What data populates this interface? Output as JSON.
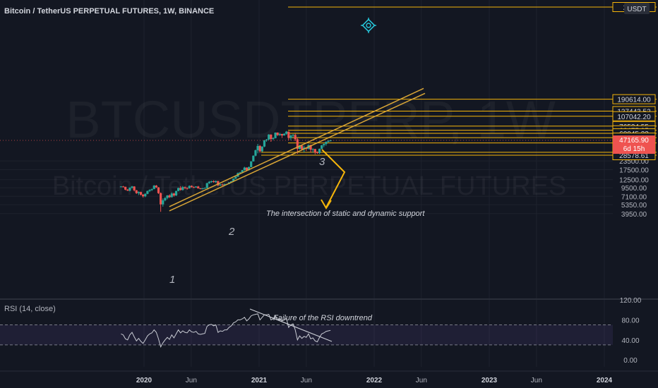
{
  "header": {
    "symbol": "Bitcoin / TetherUS PERPETUAL FUTURES, 1W, BINANCE",
    "currency": "USDT"
  },
  "watermark": {
    "line1": "BTCUSDTPERP, 1W",
    "line2": "Bitcoin / TetherUS PERPETUAL FUTURES"
  },
  "price_axis": {
    "ticks": [
      "23500.00",
      "17500.00",
      "12500.00",
      "9500.00",
      "7100.00",
      "5350.00",
      "3950.00"
    ]
  },
  "levels": [
    {
      "label": "253...6"
    },
    {
      "label": "190614.00"
    },
    {
      "label": "127443.52"
    },
    {
      "label": "107042.20"
    },
    {
      "label": "76534.55"
    },
    {
      "label": "66475.95"
    },
    {
      "label": "60045.33"
    },
    {
      "label": "51861.89"
    },
    {
      "label": "43268.49"
    },
    {
      "label": "31500.00"
    },
    {
      "label": "28578.61"
    }
  ],
  "current_price": {
    "label": "47165.90",
    "countdown": "6d 15h"
  },
  "time_axis": {
    "ticks": [
      "2020",
      "Jun",
      "2021",
      "Jun",
      "2022",
      "Jun",
      "2023",
      "Jun",
      "2024"
    ]
  },
  "annotations": {
    "touch_1": "1",
    "touch_2": "2",
    "touch_3": "3",
    "support_note": "The intersection of static and dynamic support",
    "rsi_note": "Failure of the RSI downtrend"
  },
  "rsi": {
    "title": "RSI (14, close)",
    "ticks": [
      "120.00",
      "80.00",
      "40.00",
      "0.00"
    ]
  },
  "colors": {
    "background": "#131722",
    "level_line": "#f5b50a",
    "trendline": "#d8a536",
    "bull": "#26a69a",
    "bear": "#ef5350",
    "rsi_line": "#c9ccd4",
    "rsi_band": "#7e57c2",
    "text": "#b2b5be"
  },
  "chart_data": {
    "type": "candlestick",
    "ohlc": [
      [
        9.9,
        10.0,
        9.7,
        9.9
      ],
      [
        9.9,
        10.1,
        9.6,
        9.8
      ],
      [
        9.8,
        9.8,
        8.7,
        8.9
      ],
      [
        8.9,
        9.1,
        8.5,
        8.6
      ],
      [
        8.6,
        9.6,
        8.4,
        9.5
      ],
      [
        9.5,
        10.1,
        9.2,
        9.9
      ],
      [
        9.9,
        10.0,
        8.4,
        8.7
      ],
      [
        8.7,
        8.8,
        7.7,
        7.9
      ],
      [
        7.9,
        8.4,
        7.4,
        8.2
      ],
      [
        8.2,
        8.3,
        7.3,
        7.5
      ],
      [
        7.5,
        7.7,
        6.8,
        7.1
      ],
      [
        7.1,
        7.9,
        6.9,
        7.7
      ],
      [
        7.7,
        8.6,
        7.6,
        8.5
      ],
      [
        8.5,
        9.0,
        8.2,
        8.8
      ],
      [
        8.8,
        9.2,
        8.5,
        9.1
      ],
      [
        9.1,
        10.4,
        9.0,
        10.2
      ],
      [
        10.2,
        10.4,
        9.4,
        9.6
      ],
      [
        9.6,
        9.7,
        7.7,
        7.9
      ],
      [
        7.9,
        8.1,
        4.2,
        5.4
      ],
      [
        5.4,
        6.6,
        5.0,
        6.2
      ],
      [
        6.2,
        6.9,
        6.0,
        6.7
      ],
      [
        6.7,
        7.4,
        6.4,
        7.3
      ],
      [
        7.3,
        7.6,
        6.7,
        6.9
      ],
      [
        6.9,
        8.1,
        6.8,
        7.8
      ],
      [
        7.8,
        8.0,
        7.0,
        7.3
      ],
      [
        7.3,
        8.6,
        7.2,
        8.5
      ],
      [
        8.5,
        9.5,
        8.4,
        9.4
      ],
      [
        9.4,
        10.0,
        8.6,
        8.8
      ],
      [
        8.8,
        10.1,
        8.6,
        9.7
      ],
      [
        9.7,
        9.9,
        9.1,
        9.4
      ],
      [
        9.4,
        9.6,
        8.9,
        9.3
      ],
      [
        9.3,
        10.3,
        9.2,
        10.1
      ],
      [
        10.1,
        10.3,
        9.5,
        9.7
      ],
      [
        9.7,
        9.9,
        9.4,
        9.6
      ],
      [
        9.6,
        10.0,
        9.5,
        9.9
      ],
      [
        9.9,
        10.1,
        9.2,
        9.3
      ],
      [
        9.3,
        9.4,
        9.0,
        9.2
      ],
      [
        9.2,
        9.4,
        9.0,
        9.3
      ],
      [
        9.3,
        9.6,
        9.2,
        9.4
      ],
      [
        9.4,
        11.2,
        9.3,
        11.1
      ],
      [
        11.1,
        11.9,
        10.8,
        11.6
      ],
      [
        11.6,
        12.0,
        11.2,
        11.8
      ],
      [
        11.8,
        12.2,
        11.3,
        11.5
      ],
      [
        11.5,
        12.1,
        11.2,
        11.9
      ],
      [
        11.9,
        12.0,
        10.0,
        10.3
      ],
      [
        10.3,
        10.8,
        10.1,
        10.6
      ],
      [
        10.6,
        10.9,
        10.2,
        10.4
      ],
      [
        10.4,
        10.9,
        10.2,
        10.7
      ],
      [
        10.7,
        10.9,
        10.5,
        10.8
      ],
      [
        10.8,
        11.5,
        10.7,
        11.4
      ],
      [
        11.4,
        11.9,
        11.3,
        11.8
      ],
      [
        11.8,
        13.0,
        11.7,
        12.9
      ],
      [
        12.9,
        13.9,
        12.8,
        13.8
      ],
      [
        13.8,
        15.9,
        13.7,
        15.6
      ],
      [
        15.6,
        16.2,
        15.2,
        16.0
      ],
      [
        16.0,
        17.3,
        15.8,
        17.2
      ],
      [
        17.2,
        19.3,
        16.9,
        18.8
      ],
      [
        18.8,
        18.9,
        16.5,
        17.2
      ],
      [
        17.2,
        19.5,
        17.0,
        19.1
      ],
      [
        19.1,
        23.3,
        19.0,
        23.2
      ],
      [
        23.2,
        28.4,
        23.0,
        28.1
      ],
      [
        28.1,
        34.5,
        27.5,
        33.8
      ],
      [
        33.8,
        41.9,
        30.5,
        39.1
      ],
      [
        39.1,
        40.3,
        31.0,
        32.6
      ],
      [
        32.6,
        38.6,
        31.8,
        38.3
      ],
      [
        38.3,
        48.0,
        37.5,
        47.2
      ],
      [
        47.2,
        49.5,
        45.0,
        48.6
      ],
      [
        48.6,
        58.3,
        47.5,
        57.5
      ],
      [
        57.5,
        57.8,
        45.0,
        49.5
      ],
      [
        49.5,
        52.5,
        47.5,
        51.0
      ],
      [
        51.0,
        61.8,
        50.5,
        61.5
      ],
      [
        61.5,
        61.8,
        54.8,
        56.5
      ],
      [
        56.5,
        61.0,
        55.0,
        58.7
      ],
      [
        58.7,
        59.0,
        51.3,
        55.8
      ],
      [
        55.8,
        60.5,
        55.5,
        59.0
      ],
      [
        59.0,
        65.0,
        57.0,
        63.5
      ],
      [
        63.5,
        64.0,
        47.5,
        51.5
      ],
      [
        51.5,
        57.5,
        47.5,
        55.5
      ],
      [
        55.5,
        58.5,
        52.5,
        56.8
      ],
      [
        56.8,
        59.0,
        46.0,
        49.0
      ],
      [
        49.0,
        51.5,
        30.0,
        35.5
      ],
      [
        35.5,
        41.0,
        34.8,
        39.5
      ],
      [
        39.5,
        40.5,
        33.5,
        35.0
      ],
      [
        35.0,
        39.5,
        31.5,
        37.0
      ],
      [
        37.0,
        37.5,
        33.0,
        35.5
      ],
      [
        35.5,
        41.3,
        34.8,
        40.2
      ],
      [
        40.2,
        41.0,
        31.3,
        34.5
      ],
      [
        34.5,
        36.0,
        31.2,
        35.2
      ],
      [
        35.2,
        35.5,
        29.5,
        31.5
      ],
      [
        31.5,
        32.5,
        30.0,
        30.8
      ],
      [
        30.8,
        35.8,
        29.8,
        35.5
      ],
      [
        35.5,
        40.5,
        35.0,
        40.0
      ],
      [
        40.0,
        42.5,
        37.5,
        41.8
      ],
      [
        41.8,
        45.5,
        39.5,
        45.0
      ],
      [
        45.0,
        47.5,
        44.0,
        46.5
      ],
      [
        46.5,
        48.3,
        45.5,
        47.2
      ]
    ],
    "levels": [
      253000,
      190614,
      127443.52,
      107042.2,
      76534.55,
      66475.95,
      60045.33,
      51861.89,
      43268.49,
      31500,
      28578.61
    ],
    "current_price": 47165.9,
    "price_ticks": [
      23500,
      17500,
      12500,
      9500,
      7100,
      5350,
      3950
    ],
    "trendline": {
      "from": [
        2020.22,
        5000
      ],
      "to": [
        2022.0,
        96000
      ]
    },
    "rsi": [
      52,
      50,
      42,
      40,
      50,
      55,
      46,
      38,
      43,
      37,
      33,
      40,
      48,
      52,
      54,
      60,
      55,
      42,
      26,
      34,
      40,
      45,
      41,
      50,
      44,
      52,
      60,
      54,
      58,
      55,
      54,
      60,
      56,
      55,
      57,
      52,
      51,
      52,
      53,
      67,
      70,
      71,
      68,
      70,
      55,
      58,
      57,
      60,
      60,
      65,
      68,
      74,
      76,
      80,
      80,
      82,
      85,
      78,
      82,
      88,
      90,
      91,
      92,
      80,
      85,
      90,
      90,
      91,
      80,
      82,
      88,
      80,
      82,
      78,
      80,
      83,
      65,
      70,
      72,
      60,
      40,
      48,
      43,
      47,
      45,
      52,
      42,
      44,
      38,
      36,
      45,
      52,
      54,
      57,
      58,
      59
    ],
    "rsi_ticks": [
      120,
      80,
      40,
      0
    ],
    "rsi_band": [
      30,
      70
    ]
  }
}
